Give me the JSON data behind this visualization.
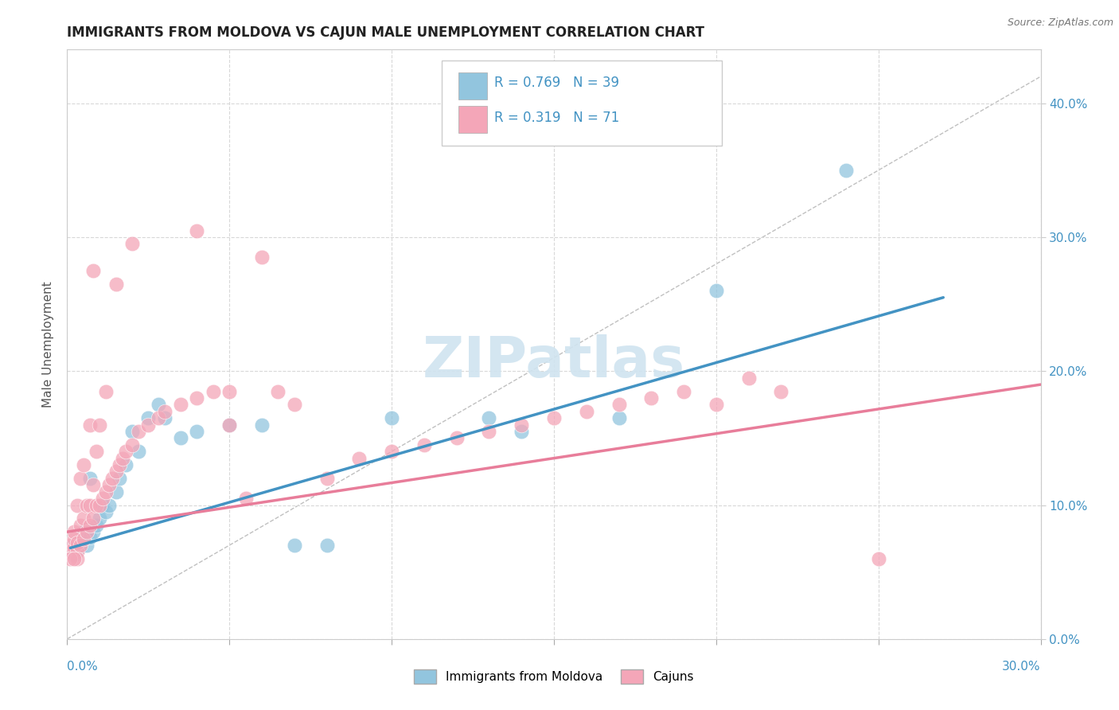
{
  "title": "IMMIGRANTS FROM MOLDOVA VS CAJUN MALE UNEMPLOYMENT CORRELATION CHART",
  "source": "Source: ZipAtlas.com",
  "ylabel": "Male Unemployment",
  "xlim": [
    0.0,
    0.3
  ],
  "ylim": [
    0.0,
    0.44
  ],
  "blue_color": "#92c5de",
  "pink_color": "#f4a6b8",
  "trend_blue": "#4393c3",
  "trend_pink": "#e87d9a",
  "ref_line_color": "#c0c0c0",
  "blue_scatter": [
    [
      0.001,
      0.068
    ],
    [
      0.002,
      0.07
    ],
    [
      0.002,
      0.063
    ],
    [
      0.003,
      0.067
    ],
    [
      0.003,
      0.071
    ],
    [
      0.004,
      0.072
    ],
    [
      0.004,
      0.069
    ],
    [
      0.005,
      0.075
    ],
    [
      0.005,
      0.08
    ],
    [
      0.006,
      0.07
    ],
    [
      0.006,
      0.082
    ],
    [
      0.007,
      0.076
    ],
    [
      0.007,
      0.12
    ],
    [
      0.008,
      0.08
    ],
    [
      0.009,
      0.085
    ],
    [
      0.01,
      0.09
    ],
    [
      0.011,
      0.1
    ],
    [
      0.012,
      0.095
    ],
    [
      0.013,
      0.1
    ],
    [
      0.015,
      0.11
    ],
    [
      0.016,
      0.12
    ],
    [
      0.018,
      0.13
    ],
    [
      0.02,
      0.155
    ],
    [
      0.022,
      0.14
    ],
    [
      0.025,
      0.165
    ],
    [
      0.028,
      0.175
    ],
    [
      0.03,
      0.165
    ],
    [
      0.035,
      0.15
    ],
    [
      0.04,
      0.155
    ],
    [
      0.05,
      0.16
    ],
    [
      0.06,
      0.16
    ],
    [
      0.07,
      0.07
    ],
    [
      0.08,
      0.07
    ],
    [
      0.1,
      0.165
    ],
    [
      0.13,
      0.165
    ],
    [
      0.17,
      0.165
    ],
    [
      0.2,
      0.26
    ],
    [
      0.24,
      0.35
    ],
    [
      0.14,
      0.155
    ]
  ],
  "pink_scatter": [
    [
      0.001,
      0.065
    ],
    [
      0.001,
      0.07
    ],
    [
      0.002,
      0.068
    ],
    [
      0.002,
      0.075
    ],
    [
      0.002,
      0.08
    ],
    [
      0.003,
      0.065
    ],
    [
      0.003,
      0.072
    ],
    [
      0.003,
      0.1
    ],
    [
      0.004,
      0.07
    ],
    [
      0.004,
      0.085
    ],
    [
      0.004,
      0.12
    ],
    [
      0.005,
      0.075
    ],
    [
      0.005,
      0.09
    ],
    [
      0.005,
      0.13
    ],
    [
      0.006,
      0.08
    ],
    [
      0.006,
      0.1
    ],
    [
      0.007,
      0.085
    ],
    [
      0.007,
      0.1
    ],
    [
      0.007,
      0.16
    ],
    [
      0.008,
      0.09
    ],
    [
      0.008,
      0.115
    ],
    [
      0.009,
      0.1
    ],
    [
      0.009,
      0.14
    ],
    [
      0.01,
      0.1
    ],
    [
      0.01,
      0.16
    ],
    [
      0.011,
      0.105
    ],
    [
      0.012,
      0.11
    ],
    [
      0.012,
      0.185
    ],
    [
      0.013,
      0.115
    ],
    [
      0.014,
      0.12
    ],
    [
      0.015,
      0.125
    ],
    [
      0.016,
      0.13
    ],
    [
      0.017,
      0.135
    ],
    [
      0.018,
      0.14
    ],
    [
      0.02,
      0.145
    ],
    [
      0.022,
      0.155
    ],
    [
      0.025,
      0.16
    ],
    [
      0.028,
      0.165
    ],
    [
      0.03,
      0.17
    ],
    [
      0.035,
      0.175
    ],
    [
      0.04,
      0.18
    ],
    [
      0.045,
      0.185
    ],
    [
      0.05,
      0.185
    ],
    [
      0.055,
      0.105
    ],
    [
      0.065,
      0.185
    ],
    [
      0.07,
      0.175
    ],
    [
      0.08,
      0.12
    ],
    [
      0.09,
      0.135
    ],
    [
      0.1,
      0.14
    ],
    [
      0.11,
      0.145
    ],
    [
      0.12,
      0.15
    ],
    [
      0.13,
      0.155
    ],
    [
      0.14,
      0.16
    ],
    [
      0.15,
      0.165
    ],
    [
      0.16,
      0.17
    ],
    [
      0.17,
      0.175
    ],
    [
      0.18,
      0.18
    ],
    [
      0.19,
      0.185
    ],
    [
      0.2,
      0.175
    ],
    [
      0.21,
      0.195
    ],
    [
      0.04,
      0.305
    ],
    [
      0.06,
      0.285
    ],
    [
      0.02,
      0.295
    ],
    [
      0.015,
      0.265
    ],
    [
      0.008,
      0.275
    ],
    [
      0.25,
      0.06
    ],
    [
      0.22,
      0.185
    ],
    [
      0.05,
      0.16
    ],
    [
      0.003,
      0.06
    ],
    [
      0.001,
      0.06
    ],
    [
      0.002,
      0.06
    ]
  ],
  "blue_trend_x": [
    0.001,
    0.27
  ],
  "blue_trend_y": [
    0.068,
    0.255
  ],
  "pink_trend_x": [
    0.0,
    0.3
  ],
  "pink_trend_y": [
    0.08,
    0.19
  ],
  "ref_line_x": [
    0.0,
    0.3
  ],
  "ref_line_y": [
    0.0,
    0.42
  ],
  "ytick_labels": [
    "0.0%",
    "10.0%",
    "20.0%",
    "30.0%",
    "40.0%"
  ],
  "ytick_values": [
    0.0,
    0.1,
    0.2,
    0.3,
    0.4
  ],
  "xtick_values": [
    0.0,
    0.05,
    0.1,
    0.15,
    0.2,
    0.25,
    0.3
  ],
  "background_color": "#ffffff",
  "grid_color": "#d8d8d8",
  "watermark_text": "ZIPatlas",
  "watermark_color": "#d0e4f0"
}
